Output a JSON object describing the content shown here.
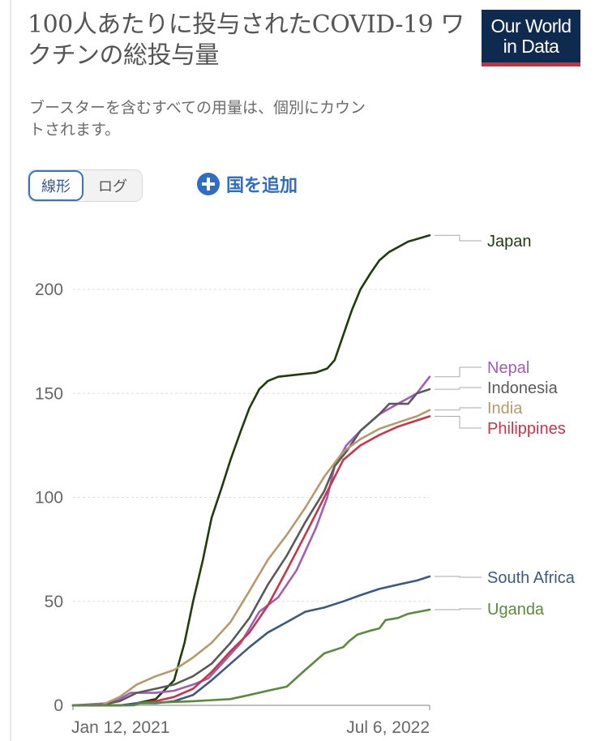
{
  "header": {
    "title": "100人あたりに投与されたCOVID-19 ワクチンの総投与量",
    "subtitle": "ブースターを含むすべての用量は、個別にカウントされます。",
    "logo_line1": "Our World",
    "logo_line2": "in Data"
  },
  "controls": {
    "linear_label": "線形",
    "log_label": "ログ",
    "add_country_label": "国を追加"
  },
  "colors": {
    "japan": "#1f3d0c",
    "nepal": "#a05eb5",
    "indonesia": "#5a5a5a",
    "india": "#b59a6d",
    "philippines": "#c5364a",
    "south_africa": "#3c5a80",
    "uganda": "#5a8a3c",
    "grid": "#dddddd"
  },
  "chart_data": {
    "type": "line",
    "ylim": [
      0,
      230
    ],
    "yticks": [
      0,
      50,
      100,
      150,
      200
    ],
    "xlim": [
      "2020-12-01",
      "2022-07-06"
    ],
    "xtick_labels": [
      "Jan 12, 2021",
      "Jul 6, 2022"
    ],
    "series": [
      {
        "name": "Japan",
        "color_key": "japan",
        "points": [
          [
            "2020-12-01",
            0
          ],
          [
            "2021-02-17",
            0
          ],
          [
            "2021-03-15",
            1
          ],
          [
            "2021-04-15",
            3
          ],
          [
            "2021-05-15",
            12
          ],
          [
            "2021-06-01",
            30
          ],
          [
            "2021-06-15",
            50
          ],
          [
            "2021-07-01",
            70
          ],
          [
            "2021-07-15",
            90
          ],
          [
            "2021-08-01",
            105
          ],
          [
            "2021-08-15",
            118
          ],
          [
            "2021-09-01",
            132
          ],
          [
            "2021-09-15",
            143
          ],
          [
            "2021-10-01",
            152
          ],
          [
            "2021-10-15",
            156
          ],
          [
            "2021-11-01",
            158
          ],
          [
            "2021-12-01",
            159
          ],
          [
            "2022-01-01",
            160
          ],
          [
            "2022-01-20",
            162
          ],
          [
            "2022-02-01",
            166
          ],
          [
            "2022-02-15",
            178
          ],
          [
            "2022-03-01",
            190
          ],
          [
            "2022-03-15",
            200
          ],
          [
            "2022-04-01",
            208
          ],
          [
            "2022-04-15",
            214
          ],
          [
            "2022-05-01",
            218
          ],
          [
            "2022-06-01",
            223
          ],
          [
            "2022-07-06",
            226
          ]
        ]
      },
      {
        "name": "Nepal",
        "color_key": "nepal",
        "points": [
          [
            "2020-12-01",
            0
          ],
          [
            "2021-01-27",
            1
          ],
          [
            "2021-02-15",
            3
          ],
          [
            "2021-03-05",
            6
          ],
          [
            "2021-03-20",
            6
          ],
          [
            "2021-04-15",
            6
          ],
          [
            "2021-05-15",
            7
          ],
          [
            "2021-06-15",
            10
          ],
          [
            "2021-07-10",
            13
          ],
          [
            "2021-08-01",
            20
          ],
          [
            "2021-09-01",
            30
          ],
          [
            "2021-10-01",
            45
          ],
          [
            "2021-11-01",
            52
          ],
          [
            "2021-12-01",
            65
          ],
          [
            "2022-01-01",
            85
          ],
          [
            "2022-01-20",
            100
          ],
          [
            "2022-02-01",
            115
          ],
          [
            "2022-02-20",
            125
          ],
          [
            "2022-03-15",
            132
          ],
          [
            "2022-04-15",
            140
          ],
          [
            "2022-05-15",
            145
          ],
          [
            "2022-06-15",
            150
          ],
          [
            "2022-07-06",
            158
          ]
        ]
      },
      {
        "name": "Indonesia",
        "color_key": "indonesia",
        "points": [
          [
            "2020-12-01",
            0
          ],
          [
            "2021-01-13",
            0
          ],
          [
            "2021-02-15",
            2
          ],
          [
            "2021-03-15",
            6
          ],
          [
            "2021-04-15",
            8
          ],
          [
            "2021-05-15",
            10
          ],
          [
            "2021-06-15",
            14
          ],
          [
            "2021-07-15",
            20
          ],
          [
            "2021-08-15",
            30
          ],
          [
            "2021-09-15",
            42
          ],
          [
            "2021-10-15",
            58
          ],
          [
            "2021-11-15",
            72
          ],
          [
            "2021-12-15",
            88
          ],
          [
            "2022-01-15",
            103
          ],
          [
            "2022-02-01",
            115
          ],
          [
            "2022-02-20",
            122
          ],
          [
            "2022-03-15",
            132
          ],
          [
            "2022-04-15",
            140
          ],
          [
            "2022-05-01",
            145
          ],
          [
            "2022-06-01",
            145
          ],
          [
            "2022-06-15",
            150
          ],
          [
            "2022-07-06",
            152
          ]
        ]
      },
      {
        "name": "India",
        "color_key": "india",
        "points": [
          [
            "2020-12-01",
            0
          ],
          [
            "2021-01-16",
            0
          ],
          [
            "2021-02-15",
            4
          ],
          [
            "2021-03-15",
            10
          ],
          [
            "2021-04-15",
            14
          ],
          [
            "2021-05-15",
            17
          ],
          [
            "2021-06-15",
            23
          ],
          [
            "2021-07-15",
            30
          ],
          [
            "2021-08-15",
            40
          ],
          [
            "2021-09-15",
            55
          ],
          [
            "2021-10-15",
            70
          ],
          [
            "2021-11-15",
            82
          ],
          [
            "2021-12-15",
            95
          ],
          [
            "2022-01-15",
            110
          ],
          [
            "2022-02-15",
            122
          ],
          [
            "2022-03-15",
            128
          ],
          [
            "2022-04-15",
            133
          ],
          [
            "2022-05-15",
            136
          ],
          [
            "2022-06-15",
            139
          ],
          [
            "2022-07-06",
            142
          ]
        ]
      },
      {
        "name": "Philippines",
        "color_key": "philippines",
        "points": [
          [
            "2020-12-01",
            0
          ],
          [
            "2021-03-01",
            0
          ],
          [
            "2021-03-15",
            1
          ],
          [
            "2021-04-15",
            2
          ],
          [
            "2021-05-15",
            4
          ],
          [
            "2021-06-15",
            8
          ],
          [
            "2021-07-15",
            16
          ],
          [
            "2021-08-15",
            26
          ],
          [
            "2021-09-15",
            35
          ],
          [
            "2021-10-15",
            48
          ],
          [
            "2021-11-15",
            65
          ],
          [
            "2021-12-15",
            82
          ],
          [
            "2022-01-15",
            100
          ],
          [
            "2022-02-15",
            118
          ],
          [
            "2022-03-15",
            125
          ],
          [
            "2022-04-15",
            130
          ],
          [
            "2022-05-15",
            134
          ],
          [
            "2022-06-15",
            137
          ],
          [
            "2022-07-06",
            139
          ]
        ]
      },
      {
        "name": "South Africa",
        "color_key": "south_africa",
        "points": [
          [
            "2020-12-01",
            0
          ],
          [
            "2021-02-17",
            0
          ],
          [
            "2021-03-15",
            1
          ],
          [
            "2021-04-15",
            1
          ],
          [
            "2021-05-15",
            2
          ],
          [
            "2021-06-15",
            5
          ],
          [
            "2021-07-15",
            12
          ],
          [
            "2021-08-15",
            20
          ],
          [
            "2021-09-15",
            28
          ],
          [
            "2021-10-15",
            35
          ],
          [
            "2021-11-15",
            40
          ],
          [
            "2021-12-15",
            45
          ],
          [
            "2022-01-15",
            47
          ],
          [
            "2022-02-15",
            50
          ],
          [
            "2022-03-15",
            53
          ],
          [
            "2022-04-15",
            56
          ],
          [
            "2022-05-15",
            58
          ],
          [
            "2022-06-15",
            60
          ],
          [
            "2022-07-06",
            62
          ]
        ]
      },
      {
        "name": "Uganda",
        "color_key": "uganda",
        "points": [
          [
            "2020-12-01",
            0
          ],
          [
            "2021-03-10",
            0
          ],
          [
            "2021-03-20",
            1
          ],
          [
            "2021-06-15",
            2
          ],
          [
            "2021-08-15",
            3
          ],
          [
            "2021-09-15",
            5
          ],
          [
            "2021-10-15",
            7
          ],
          [
            "2021-11-15",
            9
          ],
          [
            "2021-12-15",
            17
          ],
          [
            "2022-01-15",
            25
          ],
          [
            "2022-02-15",
            28
          ],
          [
            "2022-02-25",
            31
          ],
          [
            "2022-03-10",
            34
          ],
          [
            "2022-04-01",
            36
          ],
          [
            "2022-04-15",
            37
          ],
          [
            "2022-04-25",
            41
          ],
          [
            "2022-05-15",
            42
          ],
          [
            "2022-06-01",
            44
          ],
          [
            "2022-07-06",
            46
          ]
        ]
      }
    ],
    "labels": [
      {
        "text": "Japan",
        "color_key": "japan"
      },
      {
        "text": "Nepal",
        "color_key": "nepal"
      },
      {
        "text": "Indonesia",
        "color_key": "indonesia"
      },
      {
        "text": "India",
        "color_key": "india"
      },
      {
        "text": "Philippines",
        "color_key": "philippines"
      },
      {
        "text": "South Africa",
        "color_key": "south_africa"
      },
      {
        "text": "Uganda",
        "color_key": "uganda"
      }
    ]
  }
}
